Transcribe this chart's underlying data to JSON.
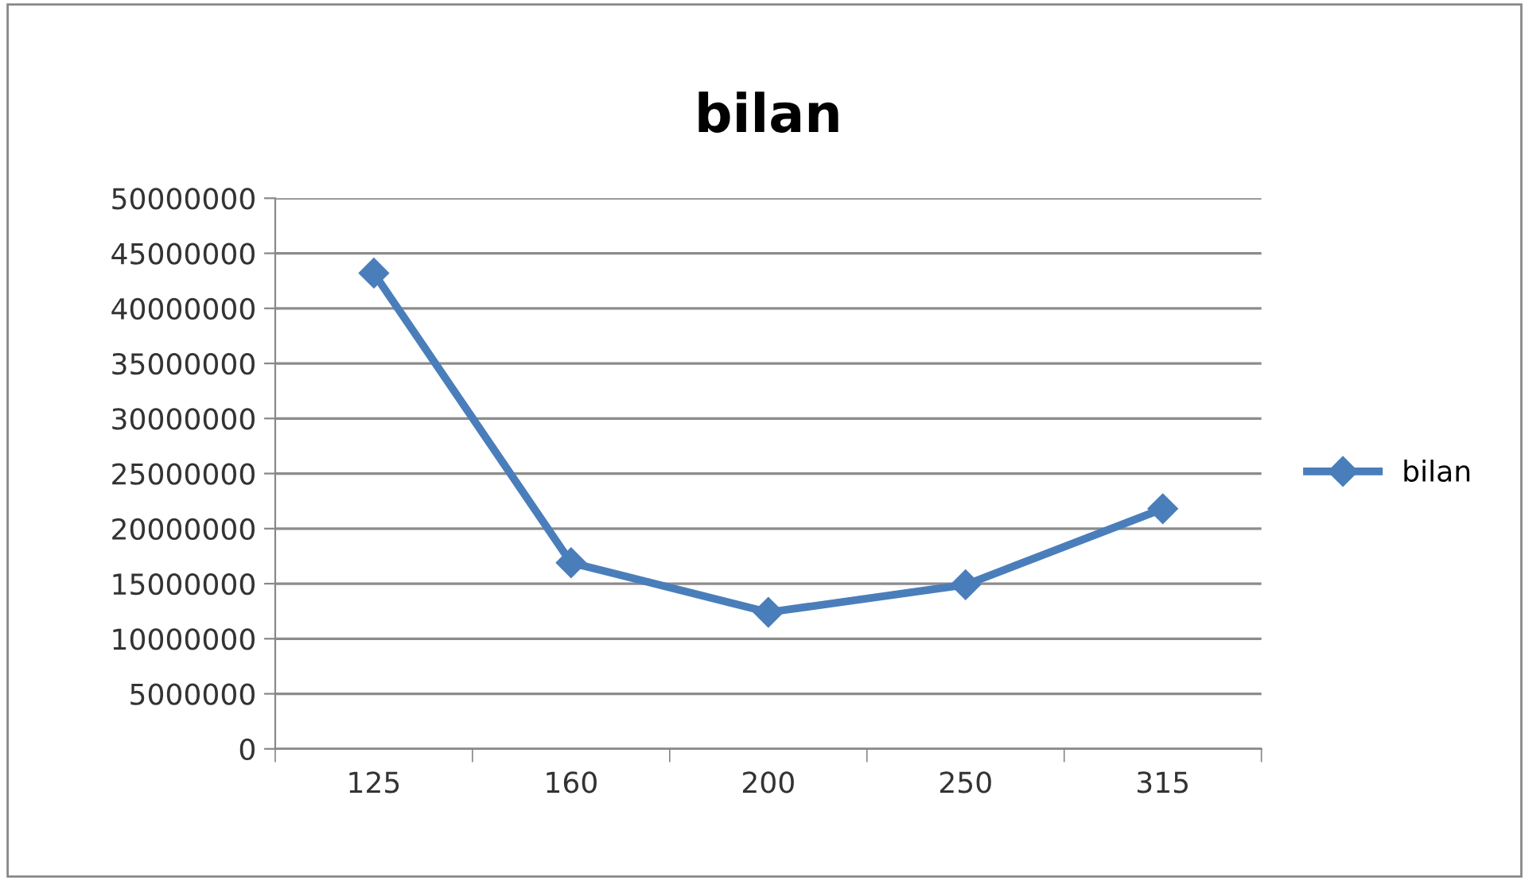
{
  "chart_data": {
    "type": "line",
    "title": "bilan",
    "categories": [
      "125",
      "160",
      "200",
      "250",
      "315"
    ],
    "series": [
      {
        "name": "bilan",
        "color": "#4a7ebb",
        "values": [
          43200000,
          16900000,
          12400000,
          14900000,
          21800000
        ]
      }
    ],
    "ylim": [
      0,
      50000000
    ],
    "yticks": [
      0,
      5000000,
      10000000,
      15000000,
      20000000,
      25000000,
      30000000,
      35000000,
      40000000,
      45000000,
      50000000
    ],
    "grid": "y",
    "legend": "right",
    "marker": "diamond",
    "line_style": "solid"
  }
}
